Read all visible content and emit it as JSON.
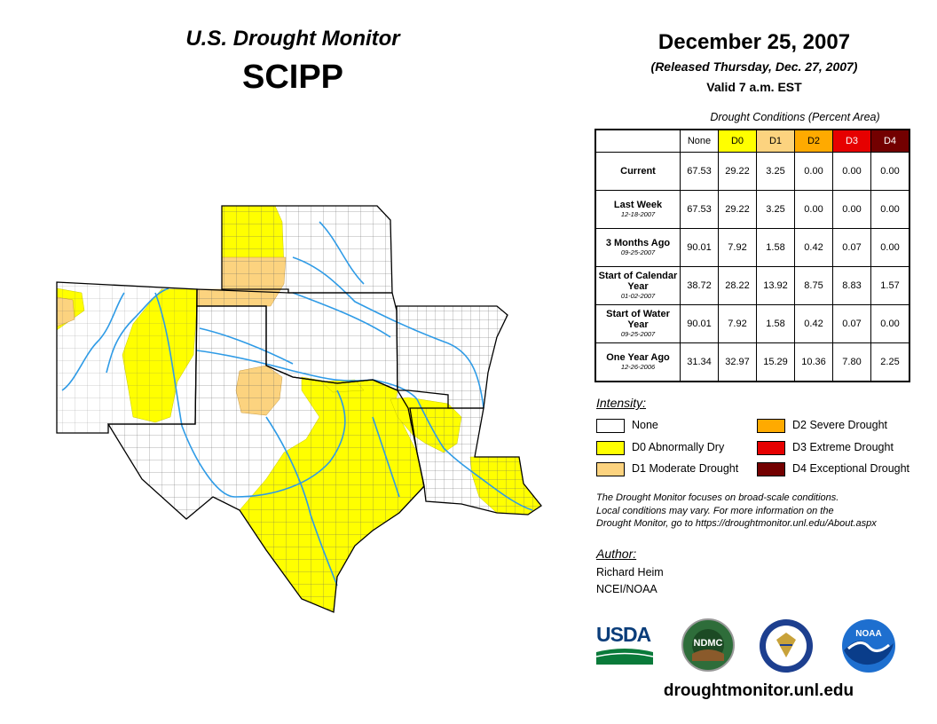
{
  "header": {
    "brand": "U.S. Drought Monitor",
    "region": "SCIPP",
    "date": "December 25, 2007",
    "released": "(Released Thursday, Dec. 27, 2007)",
    "valid": "Valid 7 a.m. EST"
  },
  "table": {
    "caption": "Drought Conditions (Percent Area)",
    "columns": [
      {
        "label": "None",
        "color": "#ffffff"
      },
      {
        "label": "D0",
        "color": "#ffff00"
      },
      {
        "label": "D1",
        "color": "#fcd37f"
      },
      {
        "label": "D2",
        "color": "#ffaa00"
      },
      {
        "label": "D3",
        "color": "#e60000"
      },
      {
        "label": "D4",
        "color": "#730000"
      }
    ],
    "rows": [
      {
        "label": "Current",
        "date": "",
        "values": [
          "67.53",
          "29.22",
          "3.25",
          "0.00",
          "0.00",
          "0.00"
        ]
      },
      {
        "label": "Last Week",
        "date": "12-18-2007",
        "values": [
          "67.53",
          "29.22",
          "3.25",
          "0.00",
          "0.00",
          "0.00"
        ]
      },
      {
        "label": "3 Months Ago",
        "date": "09-25-2007",
        "values": [
          "90.01",
          "7.92",
          "1.58",
          "0.42",
          "0.07",
          "0.00"
        ]
      },
      {
        "label": "Start of Calendar Year",
        "date": "01-02-2007",
        "values": [
          "38.72",
          "28.22",
          "13.92",
          "8.75",
          "8.83",
          "1.57"
        ]
      },
      {
        "label": "Start of Water Year",
        "date": "09-25-2007",
        "values": [
          "90.01",
          "7.92",
          "1.58",
          "0.42",
          "0.07",
          "0.00"
        ]
      },
      {
        "label": "One Year Ago",
        "date": "12-26-2006",
        "values": [
          "31.34",
          "32.97",
          "15.29",
          "10.36",
          "7.80",
          "2.25"
        ]
      }
    ]
  },
  "legend": {
    "title": "Intensity:",
    "items": [
      {
        "label": "None",
        "color": "#ffffff"
      },
      {
        "label": "D0 Abnormally Dry",
        "color": "#ffff00"
      },
      {
        "label": "D1 Moderate Drought",
        "color": "#fcd37f"
      },
      {
        "label": "D2 Severe Drought",
        "color": "#ffaa00"
      },
      {
        "label": "D3 Extreme Drought",
        "color": "#e60000"
      },
      {
        "label": "D4 Exceptional Drought",
        "color": "#730000"
      }
    ]
  },
  "note": {
    "line1": "The Drought Monitor focuses on broad-scale conditions.",
    "line2": "Local conditions may vary. For more information on the",
    "line3": "Drought Monitor, go to https://droughtmonitor.unl.edu/About.aspx"
  },
  "author": {
    "title": "Author:",
    "name": "Richard Heim",
    "org": "NCEI/NOAA"
  },
  "logos": {
    "usda": "USDA",
    "ndmc": "NDMC",
    "noaa": "NOAA"
  },
  "footer": {
    "url": "droughtmonitor.unl.edu"
  },
  "map": {
    "states": [
      "New Mexico",
      "Colorado (part)",
      "Kansas",
      "Oklahoma",
      "Texas",
      "Arkansas",
      "Louisiana",
      "Mississippi (part)"
    ],
    "colors": {
      "state_line": "#000000",
      "county_line": "#555555",
      "river": "#2f9be6"
    }
  }
}
